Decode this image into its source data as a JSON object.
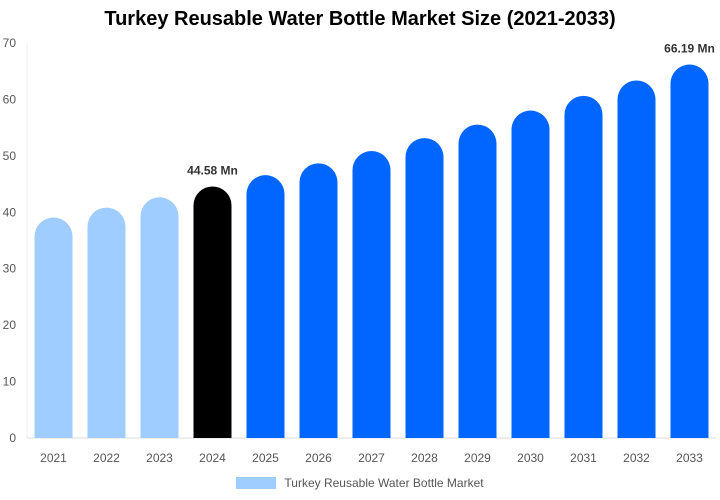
{
  "chart_data": {
    "type": "bar",
    "title": "Turkey Reusable Water Bottle Market Size (2021-2033)",
    "xlabel": "",
    "ylabel": "",
    "ylim": [
      0,
      70
    ],
    "yticks": [
      0,
      10,
      20,
      30,
      40,
      50,
      60,
      70
    ],
    "grid": false,
    "legend_position": "bottom",
    "categories": [
      "2021",
      "2022",
      "2023",
      "2024",
      "2025",
      "2026",
      "2027",
      "2028",
      "2029",
      "2030",
      "2031",
      "2032",
      "2033"
    ],
    "series": [
      {
        "name": "Turkey Reusable Water Bottle Market",
        "values": [
          39.07,
          40.83,
          42.66,
          44.58,
          46.58,
          48.67,
          50.86,
          53.15,
          55.54,
          58.03,
          60.64,
          63.36,
          66.19
        ]
      }
    ],
    "bar_colors": [
      "#a0cdff",
      "#a0cdff",
      "#a0cdff",
      "#000000",
      "#0066ff",
      "#0066ff",
      "#0066ff",
      "#0066ff",
      "#0066ff",
      "#0066ff",
      "#0066ff",
      "#0066ff",
      "#0066ff"
    ],
    "data_labels": [
      {
        "category": "2024",
        "text": "44.58 Mn"
      },
      {
        "category": "2033",
        "text": "66.19 Mn"
      }
    ]
  }
}
